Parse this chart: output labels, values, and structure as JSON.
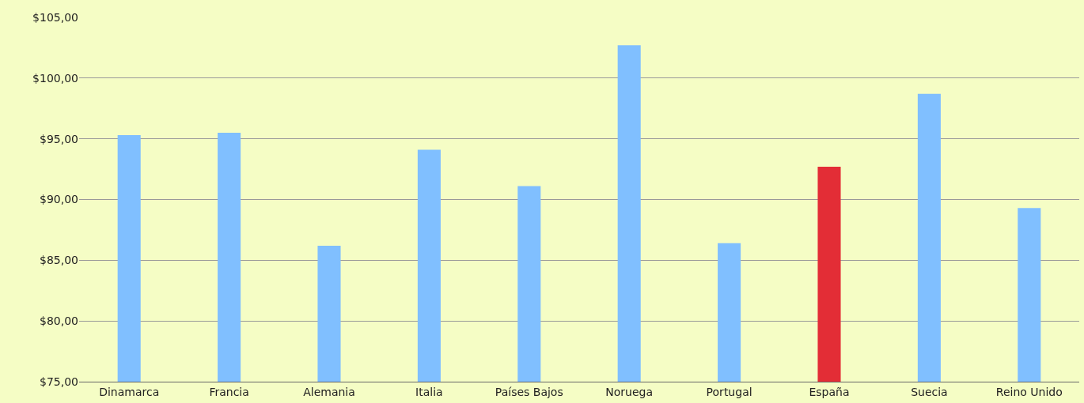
{
  "chart_data": {
    "type": "bar",
    "categories": [
      "Dinamarca",
      "Francia",
      "Alemania",
      "Italia",
      "Países Bajos",
      "Noruega",
      "Portugal",
      "España",
      "Suecia",
      "Reino Unido"
    ],
    "values": [
      95.3,
      95.5,
      86.2,
      94.1,
      91.1,
      102.7,
      86.4,
      92.7,
      98.7,
      89.3
    ],
    "colors": [
      "#80bfff",
      "#80bfff",
      "#80bfff",
      "#80bfff",
      "#80bfff",
      "#80bfff",
      "#80bfff",
      "#e32d36",
      "#80bfff",
      "#80bfff"
    ],
    "ylim": [
      75,
      105
    ],
    "yticks": [
      {
        "value": 75,
        "label": "$75,00"
      },
      {
        "value": 80,
        "label": "$80,00"
      },
      {
        "value": 85,
        "label": "$85,00"
      },
      {
        "value": 90,
        "label": "$90,00"
      },
      {
        "value": 95,
        "label": "$95,00"
      },
      {
        "value": 100,
        "label": "$100,00"
      },
      {
        "value": 105,
        "label": "$105,00"
      }
    ],
    "grid": "y"
  }
}
